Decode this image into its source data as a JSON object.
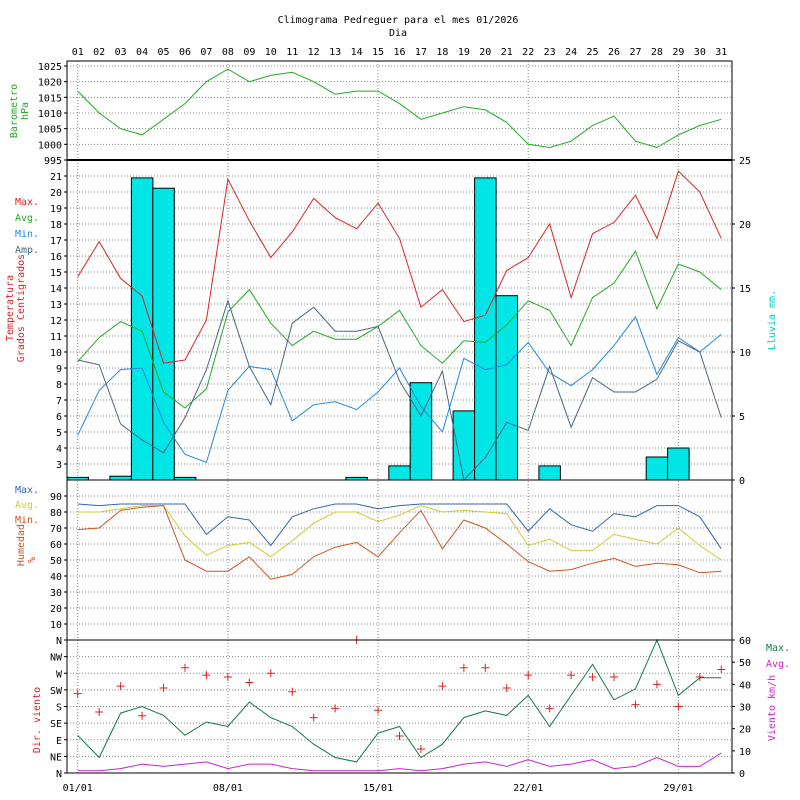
{
  "title": "Climograma Pedreguer para el mes 01/2026",
  "subtitle": "Dia",
  "days": [
    "01",
    "02",
    "03",
    "04",
    "05",
    "06",
    "07",
    "08",
    "09",
    "10",
    "11",
    "12",
    "13",
    "14",
    "15",
    "16",
    "17",
    "18",
    "19",
    "20",
    "21",
    "22",
    "23",
    "24",
    "25",
    "26",
    "27",
    "28",
    "29",
    "30",
    "31"
  ],
  "date_labels": [
    "01/01",
    "08/01",
    "15/01",
    "22/01",
    "29/01"
  ],
  "legends": {
    "barometer": [
      "Barometro",
      "hPa"
    ],
    "temp_items": [
      "Max.",
      "Avg.",
      "Min.",
      "Amp."
    ],
    "temp_axis": [
      "Temperatura",
      "Grados Centigrados"
    ],
    "rain_axis": "Lluvia mm.",
    "humidity_items": [
      "Max.",
      "Avg.",
      "Min."
    ],
    "humidity_axis": [
      "Humedad",
      "%"
    ],
    "wind_dir_axis": "Dir. viento",
    "wind_speed_items": [
      "Max.",
      "Avg."
    ],
    "wind_speed_axis": "Viento km/h"
  },
  "colors": {
    "max": "#dd2222",
    "avg": "#22aa22",
    "min": "#2288dd",
    "amp": "#446688",
    "rain_fill": "#00e5e5",
    "baro": "#22aa22",
    "hum_max": "#3366aa",
    "hum_avg": "#cccc33",
    "hum_min": "#cc5522",
    "wind_dir": "#dd2222",
    "wind_max": "#117744",
    "wind_avg": "#cc22cc",
    "rain_label": "#00cccc"
  },
  "chart_data": [
    {
      "type": "line",
      "title": "Barometro hPa",
      "ylim": [
        995,
        1025
      ],
      "yticks": [
        "995",
        "1000",
        "1005",
        "1010",
        "1015",
        "1020",
        "1025"
      ],
      "series": [
        {
          "name": "Barometro",
          "values": [
            1017,
            1010,
            1005,
            1003,
            1008,
            1013,
            1020,
            1024,
            1020,
            1022,
            1023,
            1020,
            1016,
            1017,
            1017,
            1013,
            1008,
            1010,
            1012,
            1011,
            1007,
            1000,
            999,
            1001,
            1006,
            1009,
            1001,
            999,
            1003,
            1006,
            1008
          ]
        }
      ]
    },
    {
      "type": "line",
      "title": "Temperatura Grados Centigrados",
      "ylim": [
        2,
        22
      ],
      "yticks": [
        "3",
        "4",
        "5",
        "6",
        "7",
        "8",
        "9",
        "10",
        "11",
        "12",
        "13",
        "14",
        "15",
        "16",
        "17",
        "18",
        "19",
        "20",
        "21"
      ],
      "series": [
        {
          "name": "Max.",
          "values": [
            14.7,
            16.9,
            14.6,
            13.5,
            9.3,
            9.5,
            12.0,
            20.8,
            18.2,
            15.9,
            17.5,
            19.6,
            18.4,
            17.7,
            19.3,
            17.1,
            12.8,
            13.9,
            11.9,
            12.3,
            15.1,
            15.9,
            18.0,
            13.4,
            17.4,
            18.1,
            19.8,
            17.1,
            21.3,
            20.0,
            17.1
          ]
        },
        {
          "name": "Avg.",
          "values": [
            9.4,
            10.9,
            11.9,
            11.3,
            7.5,
            6.5,
            7.7,
            12.5,
            13.9,
            11.8,
            10.4,
            11.3,
            10.8,
            10.8,
            11.6,
            12.6,
            10.4,
            9.3,
            10.7,
            10.6,
            11.7,
            13.2,
            12.6,
            10.4,
            13.4,
            14.3,
            16.3,
            12.7,
            15.5,
            15.0,
            13.9
          ]
        },
        {
          "name": "Min.",
          "values": [
            4.8,
            7.6,
            8.9,
            9.0,
            5.6,
            3.6,
            3.1,
            7.6,
            9.1,
            8.9,
            5.7,
            6.7,
            6.9,
            6.4,
            7.5,
            9.0,
            6.6,
            5.0,
            9.6,
            8.9,
            9.2,
            10.6,
            8.7,
            7.9,
            8.9,
            10.4,
            12.2,
            8.6,
            10.9,
            10.0,
            11.1
          ]
        },
        {
          "name": "Amp.",
          "values": [
            9.5,
            9.2,
            5.5,
            4.5,
            3.7,
            5.9,
            8.9,
            13.2,
            9.1,
            6.7,
            11.8,
            12.8,
            11.3,
            11.3,
            11.6,
            8.2,
            6.0,
            8.8,
            2.0,
            3.4,
            5.6,
            5.1,
            9.1,
            5.3,
            8.4,
            7.5,
            7.5,
            8.3,
            10.7,
            10.0,
            5.9
          ]
        }
      ]
    },
    {
      "type": "bar",
      "title": "Lluvia mm.",
      "ylim": [
        0,
        25
      ],
      "yticks": [
        "0",
        "5",
        "10",
        "15",
        "20",
        "25"
      ],
      "series": [
        {
          "name": "Lluvia",
          "values": [
            0.2,
            0,
            0.3,
            23.6,
            22.8,
            0.2,
            0,
            0,
            0,
            0,
            0,
            0,
            0,
            0.2,
            0,
            1.1,
            7.6,
            0,
            5.4,
            23.6,
            14.4,
            0,
            1.1,
            0,
            0,
            0,
            0,
            1.8,
            2.5,
            0,
            0
          ]
        }
      ]
    },
    {
      "type": "line",
      "title": "Humedad %",
      "ylim": [
        0,
        100
      ],
      "yticks": [
        "10",
        "20",
        "30",
        "40",
        "50",
        "60",
        "70",
        "80",
        "90"
      ],
      "series": [
        {
          "name": "Max.",
          "values": [
            85,
            84,
            85,
            85,
            85,
            85,
            66,
            77,
            75,
            59,
            77,
            82,
            85,
            85,
            82,
            84,
            85,
            85,
            85,
            85,
            85,
            68,
            82,
            72,
            68,
            79,
            77,
            84,
            84,
            77,
            57
          ]
        },
        {
          "name": "Avg.",
          "values": [
            80,
            80,
            82,
            84,
            84,
            65,
            53,
            59,
            61,
            52,
            62,
            73,
            80,
            80,
            74,
            78,
            84,
            80,
            81,
            80,
            79,
            59,
            63,
            56,
            56,
            66,
            63,
            60,
            70,
            59,
            50
          ]
        },
        {
          "name": "Min.",
          "values": [
            69,
            70,
            81,
            83,
            84,
            50,
            43,
            43,
            52,
            38,
            41,
            52,
            58,
            61,
            52,
            67,
            81,
            57,
            75,
            70,
            60,
            49,
            43,
            44,
            48,
            51,
            46,
            48,
            47,
            42,
            43
          ]
        }
      ]
    },
    {
      "type": "scatter",
      "title": "Dir. viento",
      "ylim": [
        0,
        16
      ],
      "yticks": [
        "N",
        "NE",
        "E",
        "SE",
        "S",
        "SW",
        "W",
        "NW",
        "N"
      ],
      "y_values_deg": [
        0,
        45,
        90,
        135,
        180,
        225,
        270,
        315,
        360
      ],
      "series": [
        {
          "name": "Dir. viento",
          "values": [
            215,
            165,
            235,
            155,
            230,
            285,
            265,
            260,
            245,
            270,
            220,
            150,
            175,
            360,
            170,
            100,
            65,
            235,
            285,
            285,
            230,
            265,
            175,
            265,
            260,
            260,
            185,
            240,
            180,
            260,
            280
          ]
        }
      ]
    },
    {
      "type": "line",
      "title": "Viento km/h",
      "ylim": [
        0,
        60
      ],
      "yticks": [
        "0",
        "10",
        "20",
        "30",
        "40",
        "50",
        "60"
      ],
      "series": [
        {
          "name": "Max.",
          "values": [
            17,
            7,
            27,
            30,
            26,
            17,
            23,
            21,
            32,
            25,
            21,
            13,
            7,
            5,
            18,
            21,
            7,
            13,
            25,
            28,
            26,
            35,
            21,
            35,
            49,
            33,
            38,
            60,
            35,
            43,
            43
          ]
        },
        {
          "name": "Avg.",
          "values": [
            1,
            1,
            2,
            4,
            3,
            4,
            5,
            2,
            4,
            4,
            2,
            1,
            1,
            1,
            1,
            2,
            1,
            2,
            4,
            5,
            3,
            6,
            3,
            4,
            6,
            2,
            3,
            7,
            3,
            3,
            9
          ]
        }
      ]
    }
  ]
}
